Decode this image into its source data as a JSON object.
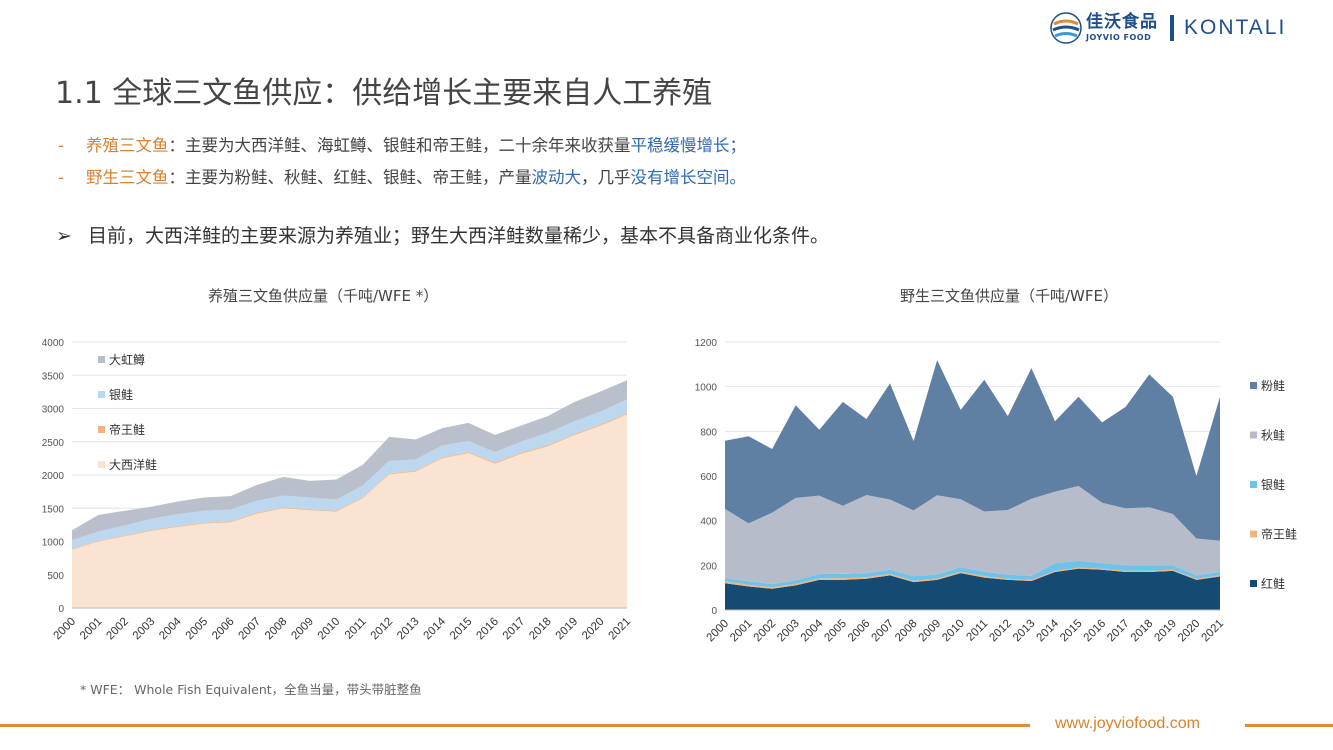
{
  "header": {
    "logo_cn": "佳沃食品",
    "logo_en": "JOYVIO FOOD",
    "partner": "KONTALI"
  },
  "title": "1.1  全球三文鱼供应：供给增长主要来自人工养殖",
  "bullets": [
    {
      "dash": "-",
      "label": "养殖三文鱼",
      "text1": "：主要为大西洋鲑、海虹鳟、银鲑和帝王鲑，二十余年来收获量",
      "highlight": "平稳缓慢增长",
      "end": "；"
    },
    {
      "dash": "-",
      "label": "野生三文鱼",
      "text1": "：主要为粉鲑、秋鲑、红鲑、银鲑、帝王鲑，产量",
      "highlight": "波动大",
      "text2": "，几乎",
      "highlight2": "没有增长空间",
      "end": "。"
    }
  ],
  "note": {
    "arrow": "➢",
    "text": "目前，大西洋鲑的主要来源为养殖业；野生大西洋鲑数量稀少，基本不具备商业化条件。"
  },
  "footnote": "* WFE： Whole Fish Equivalent，全鱼当量，带头带脏整鱼",
  "footer": {
    "url": "www.joyviofood.com"
  },
  "chart_data": [
    {
      "type": "area",
      "stacked": true,
      "title": "养殖三文鱼供应量（千吨/WFE *）",
      "categories": [
        "2000",
        "2001",
        "2002",
        "2003",
        "2004",
        "2005",
        "2006",
        "2007",
        "2008",
        "2009",
        "2010",
        "2011",
        "2012",
        "2013",
        "2014",
        "2015",
        "2016",
        "2017",
        "2018",
        "2019",
        "2020",
        "2021"
      ],
      "ylim": [
        0,
        4000
      ],
      "yticks": [
        0,
        500,
        1000,
        1500,
        2000,
        2500,
        3000,
        3500,
        4000
      ],
      "legend_position": "top-left",
      "series": [
        {
          "name": "大西洋鲑",
          "color": "#fbe3d2",
          "values": [
            880,
            1000,
            1080,
            1160,
            1220,
            1270,
            1290,
            1420,
            1500,
            1470,
            1450,
            1650,
            2010,
            2050,
            2250,
            2330,
            2170,
            2320,
            2430,
            2600,
            2740,
            2910
          ]
        },
        {
          "name": "帝王鲑",
          "color": "#f6b27e",
          "values": [
            10,
            10,
            12,
            12,
            12,
            12,
            12,
            12,
            12,
            12,
            12,
            12,
            13,
            13,
            13,
            14,
            14,
            14,
            15,
            15,
            15,
            15
          ]
        },
        {
          "name": "银鲑",
          "color": "#bcd7ee",
          "values": [
            130,
            140,
            150,
            170,
            180,
            180,
            180,
            180,
            180,
            180,
            170,
            180,
            190,
            170,
            180,
            170,
            160,
            170,
            190,
            190,
            200,
            210
          ]
        },
        {
          "name": "大虹鳟",
          "color": "#b9c0cc",
          "values": [
            150,
            250,
            220,
            180,
            190,
            200,
            200,
            240,
            280,
            250,
            300,
            310,
            360,
            300,
            260,
            270,
            260,
            240,
            250,
            290,
            300,
            290
          ]
        }
      ]
    },
    {
      "type": "area",
      "stacked": true,
      "title": "野生三文鱼供应量（千吨/WFE）",
      "categories": [
        "2000",
        "2001",
        "2002",
        "2003",
        "2004",
        "2005",
        "2006",
        "2007",
        "2008",
        "2009",
        "2010",
        "2011",
        "2012",
        "2013",
        "2014",
        "2015",
        "2016",
        "2017",
        "2018",
        "2019",
        "2020",
        "2021"
      ],
      "ylim": [
        0,
        1200
      ],
      "yticks": [
        0,
        200,
        400,
        600,
        800,
        1000,
        1200
      ],
      "legend_position": "right",
      "series": [
        {
          "name": "红鲑",
          "color": "#154a73",
          "values": [
            120,
            105,
            95,
            110,
            135,
            135,
            140,
            155,
            125,
            135,
            165,
            145,
            135,
            130,
            170,
            185,
            180,
            170,
            170,
            175,
            135,
            150
          ]
        },
        {
          "name": "帝王鲑",
          "color": "#f6b27e",
          "values": [
            8,
            8,
            7,
            7,
            7,
            7,
            7,
            7,
            6,
            6,
            6,
            6,
            5,
            5,
            5,
            5,
            5,
            5,
            5,
            5,
            5,
            5
          ]
        },
        {
          "name": "银鲑",
          "color": "#6ec3e8",
          "values": [
            15,
            15,
            14,
            15,
            20,
            20,
            18,
            18,
            20,
            18,
            20,
            20,
            18,
            18,
            35,
            30,
            25,
            25,
            25,
            20,
            15,
            15
          ]
        },
        {
          "name": "秋鲑",
          "color": "#b6bcc9",
          "values": [
            310,
            260,
            320,
            370,
            350,
            305,
            350,
            315,
            295,
            355,
            305,
            270,
            290,
            345,
            320,
            335,
            270,
            255,
            260,
            230,
            165,
            140
          ]
        },
        {
          "name": "粉鲑",
          "color": "#5f7fa3",
          "values": [
            305,
            390,
            285,
            415,
            295,
            465,
            340,
            520,
            310,
            605,
            400,
            590,
            420,
            585,
            315,
            400,
            360,
            455,
            595,
            525,
            280,
            645
          ]
        }
      ]
    }
  ]
}
